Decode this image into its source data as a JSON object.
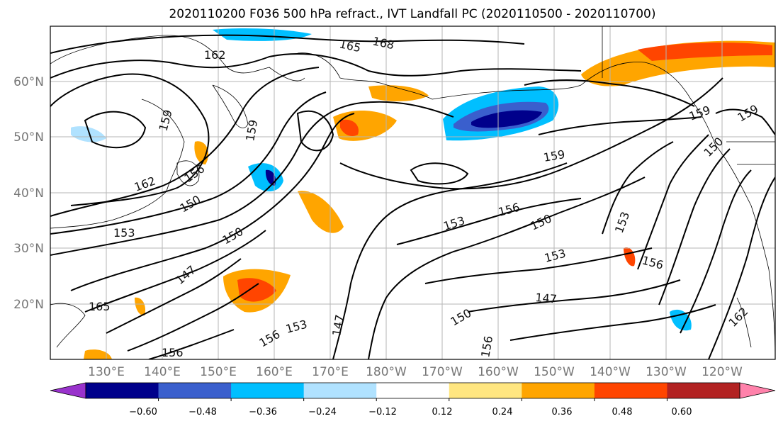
{
  "title": "2020110200 F036 500 hPa refract., IVT Landfall PC (2020110500 - 2020110700)",
  "lat_ticks": [
    "60°N",
    "50°N",
    "40°N",
    "30°N",
    "20°N"
  ],
  "lon_ticks": [
    "130°E",
    "140°E",
    "150°E",
    "160°E",
    "170°E",
    "180°W",
    "170°W",
    "160°W",
    "150°W",
    "140°W",
    "130°W",
    "120°W"
  ],
  "colorbar": {
    "ticks": [
      "−0.60",
      "−0.48",
      "−0.36",
      "−0.24",
      "−0.12",
      "0.12",
      "0.24",
      "0.36",
      "0.48",
      "0.60"
    ],
    "colors": [
      "#9932cc",
      "#00008b",
      "#3a5fcd",
      "#00bfff",
      "#b0e2ff",
      "#ffffff",
      "#ffe680",
      "#ffa500",
      "#ff4500",
      "#b22222",
      "#ff82ab"
    ]
  },
  "contour_labels": [
    "162",
    "165",
    "168",
    "159",
    "156",
    "153",
    "150",
    "147",
    "165",
    "162",
    "156",
    "153",
    "150",
    "147",
    "159",
    "156",
    "153",
    "150",
    "156",
    "153",
    "156",
    "150",
    "147",
    "156",
    "159",
    "159",
    "153",
    "159",
    "162",
    "150"
  ],
  "shading": {
    "positive_color": "#ff4500",
    "positive_light": "#ffa500",
    "positive_pale": "#ffe680",
    "negative_dark": "#00008b",
    "negative_mid": "#3a5fcd",
    "negative_light": "#00bfff",
    "negative_pale": "#b0e2ff"
  }
}
